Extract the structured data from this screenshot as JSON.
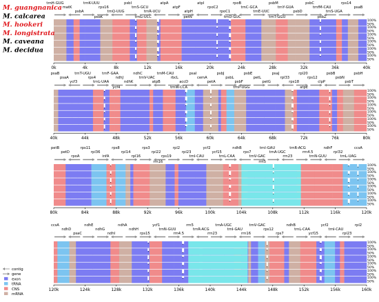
{
  "species": [
    {
      "name": "M. guangnanica",
      "color": "#e0191e"
    },
    {
      "name": "M. calcarea",
      "color": "#000000"
    },
    {
      "name": "M. hookeri",
      "color": "#e0191e"
    },
    {
      "name": "M. longistrata",
      "color": "#e0191e"
    },
    {
      "name": "M. caveana",
      "color": "#000000"
    },
    {
      "name": "M. decidua",
      "color": "#000000"
    }
  ],
  "colors": {
    "exon": "#7c7cf2",
    "cns": "#f08b8b",
    "mrna": "#cfb0a4",
    "rrna": "#79e6ea",
    "trna": "#7cc4f0",
    "gene_arrow": "#8c8c8c"
  },
  "legend": [
    "contig",
    "gene",
    "exon",
    "tRNA",
    "CNS",
    "mRNA"
  ],
  "percent_labels": [
    "100%",
    "50%"
  ],
  "panels": [
    {
      "ticks": [
        "0k",
        "4k",
        "8k",
        "12k",
        "16k",
        "20k",
        "24k",
        "28k",
        "32k",
        "36k",
        "40k"
      ],
      "genes_top": [
        "trnH-GUG",
        "matK",
        "psbA",
        "trnK-UUU",
        "rps16",
        "trnQ-UUG",
        "psbI",
        "trnS-GCU",
        "trnR-UCU",
        "atpA",
        "atpF",
        "atpH",
        "atpI",
        "rpoC2",
        "rpoC1",
        "rpoB",
        "trnC-GCA",
        "trnE-UUC",
        "psbM",
        "trnY-GUA",
        "psbD",
        "psbC",
        "trnfM-CAU",
        "trnS-UGA",
        "rps14",
        "psaB"
      ],
      "genes_bottom": [
        "psbK",
        "trnG-UCC",
        "petN",
        "trnD-GUC",
        "trnT-GGU",
        "psbZ"
      ],
      "rrna": [],
      "dips": [
        0.26,
        0.33,
        0.52,
        0.56,
        0.85
      ]
    },
    {
      "ticks": [
        "40k",
        "44k",
        "48k",
        "52k",
        "56k",
        "60k",
        "64k",
        "68k",
        "72k",
        "76k",
        "80k"
      ],
      "genes_top": [
        "psaB",
        "psaA",
        "ycf3",
        "trnT-UGU",
        "rps4",
        "trnL-UAA",
        "trnF-GAA",
        "ndhJ",
        "ndhK",
        "ndhC",
        "trnV-UAC",
        "atpB",
        "trnM-CAU",
        "rbcL",
        "accD",
        "psaI",
        "cemA",
        "petA",
        "psbJ",
        "psbL",
        "psbF",
        "psbE",
        "petL",
        "petG",
        "psaJ",
        "rpl33",
        "rps18",
        "rpl20",
        "rps12",
        "clpP",
        "psbB",
        "psbN",
        "psbT",
        "psbH"
      ],
      "genes_bottom": [
        "ycf4",
        "trnW-CCA",
        "trnP-UGG",
        "atpE"
      ],
      "rrna": [],
      "dips": [
        0.16,
        0.42,
        0.5,
        0.76,
        0.88
      ]
    },
    {
      "ticks": [
        "80k",
        "84k",
        "88k",
        "92k",
        "96k",
        "100k",
        "104k",
        "108k",
        "112k",
        "116k",
        "120k"
      ],
      "genes_top": [
        "petB",
        "petD",
        "rpoA",
        "rps11",
        "rpl36",
        "infA",
        "rps8",
        "rpl14",
        "rpl16",
        "rps3",
        "rpl22",
        "rps19",
        "rpl2",
        "rpl23",
        "trnI-CAU",
        "ycf2",
        "ycf15",
        "trnL-CAA",
        "ndhB",
        "rps7",
        "trnV-GAC",
        "trnI-GAU",
        "trnA-UGC",
        "rrn23",
        "trnR-ACG",
        "rrn4.5",
        "trnN-GUU",
        "ndhF",
        "rpl32",
        "trnL-UAG",
        "ccsA"
      ],
      "genes_bottom": [
        "rrn16",
        "rrn5"
      ],
      "rrna": [
        [
          0.6,
          0.79
        ]
      ],
      "dips": [
        0.18,
        0.56,
        0.7,
        0.94,
        0.97
      ]
    },
    {
      "ticks": [
        "120k",
        "124k",
        "128k",
        "132k",
        "136k",
        "140k",
        "144k",
        "148k",
        "152k",
        "156k",
        "160k"
      ],
      "genes_top": [
        "ccsA",
        "ndhD",
        "psaC",
        "ndhE",
        "ndhG",
        "ndhI",
        "ndhA",
        "ndhH",
        "rps15",
        "ycf1",
        "trnN-GUU",
        "rrn4.5",
        "rrn5",
        "trnR-ACG",
        "rrn23",
        "trnA-UGC",
        "trnI-GAU",
        "rrn16",
        "trnV-GAC",
        "rps12",
        "rps7",
        "ndhB",
        "trnL-CAA",
        "ycf15",
        "ycf2",
        "trnI-CAU",
        "rpl23",
        "rpl2"
      ],
      "genes_bottom": [],
      "rrna": [
        [
          0.43,
          0.62
        ]
      ],
      "dips": [
        0.3,
        0.41,
        0.68,
        0.85
      ]
    }
  ]
}
